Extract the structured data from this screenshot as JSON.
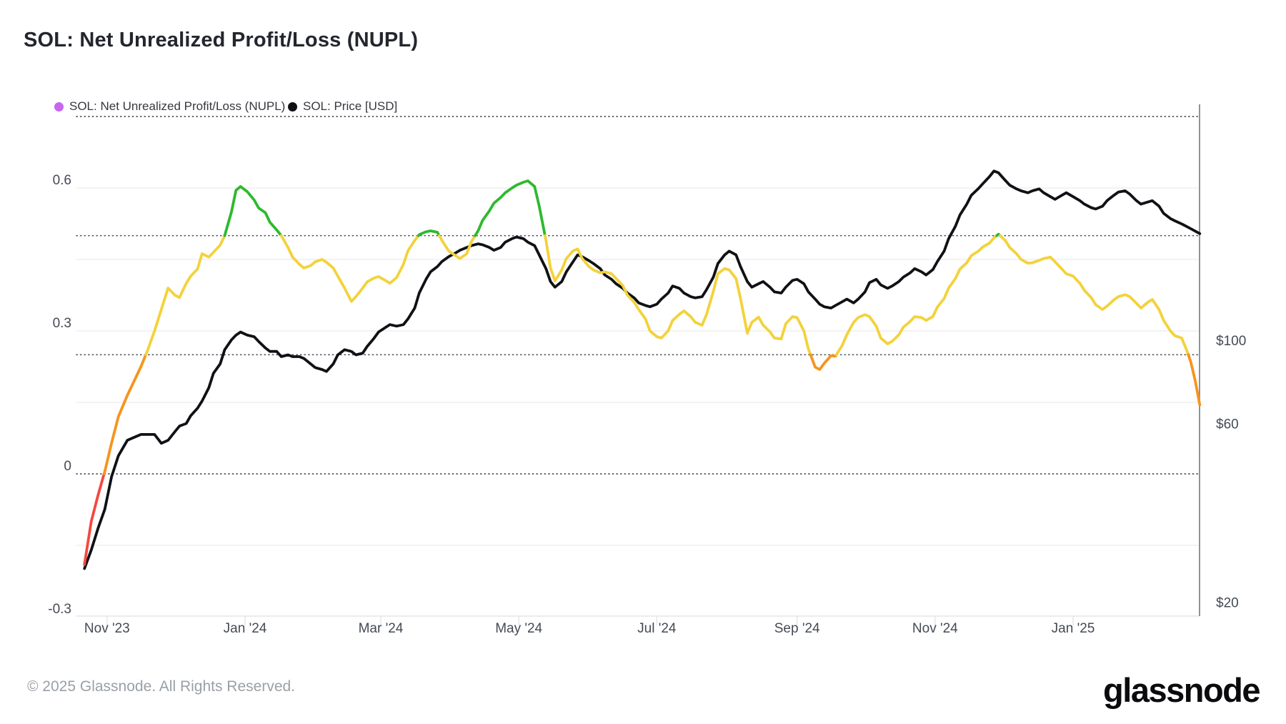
{
  "page": {
    "background": "#ffffff"
  },
  "header": {
    "title": "SOL: Net Unrealized Profit/Loss (NUPL)"
  },
  "legend": [
    {
      "label": "SOL: Net Unrealized Profit/Loss (NUPL)",
      "color": "#c766f2"
    },
    {
      "label": "SOL: Price [USD]",
      "color": "#0f1115"
    }
  ],
  "footer": {
    "copyright": "© 2025 Glassnode. All Rights Reserved.",
    "logo_text": "glassnode"
  },
  "chart_data": {
    "type": "line",
    "title": "SOL: Net Unrealized Profit/Loss (NUPL)",
    "grid": "on",
    "legend_position": "top-left",
    "x_axis": {
      "ticks": [
        {
          "date": "2023-11-01",
          "label": "Nov '23"
        },
        {
          "date": "2024-01-01",
          "label": "Jan '24"
        },
        {
          "date": "2024-03-01",
          "label": "Mar '24"
        },
        {
          "date": "2024-05-01",
          "label": "May '24"
        },
        {
          "date": "2024-07-01",
          "label": "Jul '24"
        },
        {
          "date": "2024-09-01",
          "label": "Sep '24"
        },
        {
          "date": "2024-11-01",
          "label": "Nov '24"
        },
        {
          "date": "2025-01-01",
          "label": "Jan '25"
        }
      ],
      "range": [
        "2023-10-22",
        "2025-02-26"
      ]
    },
    "left_axis": {
      "name": "NUPL",
      "scale": "linear",
      "range": [
        -0.33,
        0.77
      ],
      "ticks": [
        {
          "value": 0.6,
          "label": "0.6"
        },
        {
          "value": 0.3,
          "label": "0.3"
        },
        {
          "value": 0,
          "label": "0"
        },
        {
          "value": -0.3,
          "label": "-0.3"
        }
      ],
      "threshold_dotted_lines": [
        0.75,
        0.5,
        0.25,
        0
      ],
      "minor_gridlines": [
        0.6,
        0.45,
        0.3,
        0.15,
        -0.15
      ]
    },
    "right_axis": {
      "name": "Price USD",
      "scale": "log",
      "ticks": [
        {
          "value": 100,
          "label": "$100"
        },
        {
          "value": 60,
          "label": "$60"
        },
        {
          "value": 20,
          "label": "$20"
        }
      ]
    },
    "band_colors": [
      {
        "range": "NUPL < 0",
        "color": "#f5483f"
      },
      {
        "range": "0 to 0.25",
        "color": "#f7941d"
      },
      {
        "range": "0.25 to 0.5",
        "color": "#f3d23b"
      },
      {
        "range": "0.5 to 0.75",
        "color": "#2eb92e"
      }
    ],
    "series": [
      {
        "name": "SOL: Net Unrealized Profit/Loss (NUPL)",
        "axis": "left",
        "style": "banded-by-value"
      },
      {
        "name": "SOL: Price [USD]",
        "axis": "right",
        "color": "#0f1115"
      }
    ],
    "points_format": [
      "date",
      "nupl",
      "price_usd"
    ],
    "points": [
      [
        "2023-10-22",
        -0.19,
        25
      ],
      [
        "2023-10-25",
        -0.1,
        28
      ],
      [
        "2023-10-28",
        -0.045,
        32
      ],
      [
        "2023-10-31",
        0.005,
        36
      ],
      [
        "2023-11-03",
        0.065,
        44
      ],
      [
        "2023-11-06",
        0.12,
        50
      ],
      [
        "2023-11-10",
        0.165,
        55
      ],
      [
        "2023-11-13",
        0.195,
        56
      ],
      [
        "2023-11-16",
        0.225,
        57
      ],
      [
        "2023-11-19",
        0.26,
        57
      ],
      [
        "2023-11-22",
        0.3,
        57
      ],
      [
        "2023-11-25",
        0.345,
        54
      ],
      [
        "2023-11-28",
        0.39,
        55
      ],
      [
        "2023-12-01",
        0.375,
        58
      ],
      [
        "2023-12-03",
        0.37,
        60
      ],
      [
        "2023-12-06",
        0.4,
        61
      ],
      [
        "2023-12-08",
        0.415,
        64
      ],
      [
        "2023-12-11",
        0.43,
        67
      ],
      [
        "2023-12-13",
        0.462,
        70
      ],
      [
        "2023-12-16",
        0.455,
        76
      ],
      [
        "2023-12-18",
        0.465,
        83
      ],
      [
        "2023-12-21",
        0.48,
        88
      ],
      [
        "2023-12-23",
        0.5,
        96
      ],
      [
        "2023-12-26",
        0.55,
        102
      ],
      [
        "2023-12-28",
        0.595,
        105
      ],
      [
        "2023-12-30",
        0.603,
        107
      ],
      [
        "2024-01-02",
        0.592,
        105
      ],
      [
        "2024-01-05",
        0.575,
        104
      ],
      [
        "2024-01-07",
        0.558,
        101
      ],
      [
        "2024-01-10",
        0.548,
        97
      ],
      [
        "2024-01-12",
        0.528,
        95
      ],
      [
        "2024-01-15",
        0.512,
        95
      ],
      [
        "2024-01-17",
        0.5,
        92
      ],
      [
        "2024-01-20",
        0.475,
        93
      ],
      [
        "2024-01-22",
        0.455,
        92
      ],
      [
        "2024-01-25",
        0.44,
        92
      ],
      [
        "2024-01-27",
        0.432,
        91
      ],
      [
        "2024-01-30",
        0.437,
        88
      ],
      [
        "2024-02-01",
        0.445,
        86
      ],
      [
        "2024-02-04",
        0.45,
        85
      ],
      [
        "2024-02-06",
        0.444,
        84
      ],
      [
        "2024-02-09",
        0.432,
        88
      ],
      [
        "2024-02-11",
        0.415,
        93
      ],
      [
        "2024-02-14",
        0.39,
        96
      ],
      [
        "2024-02-17",
        0.362,
        95
      ],
      [
        "2024-02-19",
        0.372,
        93
      ],
      [
        "2024-02-22",
        0.39,
        94
      ],
      [
        "2024-02-24",
        0.403,
        98
      ],
      [
        "2024-02-27",
        0.411,
        103
      ],
      [
        "2024-02-29",
        0.414,
        107
      ],
      [
        "2024-03-03",
        0.406,
        110
      ],
      [
        "2024-03-05",
        0.4,
        112
      ],
      [
        "2024-03-08",
        0.412,
        111
      ],
      [
        "2024-03-11",
        0.44,
        112
      ],
      [
        "2024-03-13",
        0.468,
        116
      ],
      [
        "2024-03-16",
        0.49,
        124
      ],
      [
        "2024-03-18",
        0.502,
        136
      ],
      [
        "2024-03-21",
        0.508,
        148
      ],
      [
        "2024-03-23",
        0.51,
        155
      ],
      [
        "2024-03-26",
        0.507,
        160
      ],
      [
        "2024-03-28",
        0.49,
        165
      ],
      [
        "2024-03-31",
        0.468,
        170
      ],
      [
        "2024-04-03",
        0.458,
        174
      ],
      [
        "2024-04-05",
        0.452,
        177
      ],
      [
        "2024-04-08",
        0.462,
        180
      ],
      [
        "2024-04-10",
        0.487,
        182
      ],
      [
        "2024-04-13",
        0.51,
        184
      ],
      [
        "2024-04-15",
        0.532,
        183
      ],
      [
        "2024-04-18",
        0.552,
        180
      ],
      [
        "2024-04-20",
        0.568,
        177
      ],
      [
        "2024-04-23",
        0.58,
        180
      ],
      [
        "2024-04-25",
        0.59,
        186
      ],
      [
        "2024-04-28",
        0.6,
        190
      ],
      [
        "2024-04-30",
        0.606,
        192
      ],
      [
        "2024-05-03",
        0.612,
        190
      ],
      [
        "2024-05-05",
        0.615,
        186
      ],
      [
        "2024-05-08",
        0.603,
        182
      ],
      [
        "2024-05-10",
        0.562,
        172
      ],
      [
        "2024-05-13",
        0.49,
        158
      ],
      [
        "2024-05-15",
        0.432,
        146
      ],
      [
        "2024-05-17",
        0.405,
        141
      ],
      [
        "2024-05-20",
        0.428,
        146
      ],
      [
        "2024-05-22",
        0.452,
        155
      ],
      [
        "2024-05-25",
        0.468,
        165
      ],
      [
        "2024-05-27",
        0.472,
        172
      ],
      [
        "2024-05-29",
        0.452,
        170
      ],
      [
        "2024-06-01",
        0.435,
        166
      ],
      [
        "2024-06-03",
        0.428,
        163
      ],
      [
        "2024-06-06",
        0.422,
        158
      ],
      [
        "2024-06-08",
        0.424,
        152
      ],
      [
        "2024-06-11",
        0.42,
        148
      ],
      [
        "2024-06-13",
        0.41,
        144
      ],
      [
        "2024-06-16",
        0.395,
        140
      ],
      [
        "2024-06-18",
        0.375,
        136
      ],
      [
        "2024-06-21",
        0.36,
        132
      ],
      [
        "2024-06-23",
        0.345,
        128
      ],
      [
        "2024-06-26",
        0.325,
        126
      ],
      [
        "2024-06-28",
        0.3,
        125
      ],
      [
        "2024-07-01",
        0.288,
        127
      ],
      [
        "2024-07-03",
        0.285,
        131
      ],
      [
        "2024-07-06",
        0.3,
        136
      ],
      [
        "2024-07-08",
        0.322,
        142
      ],
      [
        "2024-07-11",
        0.335,
        140
      ],
      [
        "2024-07-13",
        0.342,
        136
      ],
      [
        "2024-07-16",
        0.33,
        133
      ],
      [
        "2024-07-18",
        0.318,
        132
      ],
      [
        "2024-07-21",
        0.312,
        133
      ],
      [
        "2024-07-23",
        0.335,
        139
      ],
      [
        "2024-07-26",
        0.383,
        150
      ],
      [
        "2024-07-28",
        0.42,
        163
      ],
      [
        "2024-07-31",
        0.431,
        172
      ],
      [
        "2024-08-02",
        0.428,
        176
      ],
      [
        "2024-08-05",
        0.41,
        172
      ],
      [
        "2024-08-07",
        0.368,
        160
      ],
      [
        "2024-08-10",
        0.295,
        146
      ],
      [
        "2024-08-12",
        0.318,
        141
      ],
      [
        "2024-08-15",
        0.329,
        144
      ],
      [
        "2024-08-17",
        0.312,
        146
      ],
      [
        "2024-08-20",
        0.298,
        141
      ],
      [
        "2024-08-22",
        0.285,
        137
      ],
      [
        "2024-08-25",
        0.283,
        136
      ],
      [
        "2024-08-27",
        0.315,
        141
      ],
      [
        "2024-08-30",
        0.33,
        147
      ],
      [
        "2024-09-01",
        0.328,
        148
      ],
      [
        "2024-09-04",
        0.3,
        144
      ],
      [
        "2024-09-06",
        0.262,
        137
      ],
      [
        "2024-09-09",
        0.224,
        131
      ],
      [
        "2024-09-11",
        0.219,
        127
      ],
      [
        "2024-09-13",
        0.232,
        125
      ],
      [
        "2024-09-16",
        0.248,
        124
      ],
      [
        "2024-09-18",
        0.247,
        126
      ],
      [
        "2024-09-21",
        0.27,
        129
      ],
      [
        "2024-09-23",
        0.292,
        131
      ],
      [
        "2024-09-26",
        0.318,
        128
      ],
      [
        "2024-09-28",
        0.328,
        131
      ],
      [
        "2024-10-01",
        0.334,
        137
      ],
      [
        "2024-10-03",
        0.33,
        145
      ],
      [
        "2024-10-06",
        0.31,
        148
      ],
      [
        "2024-10-08",
        0.285,
        143
      ],
      [
        "2024-10-11",
        0.273,
        140
      ],
      [
        "2024-10-13",
        0.278,
        142
      ],
      [
        "2024-10-16",
        0.292,
        146
      ],
      [
        "2024-10-18",
        0.308,
        150
      ],
      [
        "2024-10-21",
        0.32,
        154
      ],
      [
        "2024-10-23",
        0.33,
        158
      ],
      [
        "2024-10-26",
        0.328,
        155
      ],
      [
        "2024-10-28",
        0.322,
        152
      ],
      [
        "2024-10-31",
        0.33,
        157
      ],
      [
        "2024-11-02",
        0.35,
        165
      ],
      [
        "2024-11-05",
        0.368,
        176
      ],
      [
        "2024-11-07",
        0.39,
        190
      ],
      [
        "2024-11-10",
        0.41,
        205
      ],
      [
        "2024-11-12",
        0.43,
        220
      ],
      [
        "2024-11-15",
        0.443,
        235
      ],
      [
        "2024-11-17",
        0.458,
        248
      ],
      [
        "2024-11-20",
        0.467,
        258
      ],
      [
        "2024-11-22",
        0.476,
        266
      ],
      [
        "2024-11-25",
        0.484,
        278
      ],
      [
        "2024-11-27",
        0.495,
        288
      ],
      [
        "2024-11-29",
        0.503,
        285
      ],
      [
        "2024-12-02",
        0.49,
        272
      ],
      [
        "2024-12-04",
        0.475,
        264
      ],
      [
        "2024-12-07",
        0.462,
        258
      ],
      [
        "2024-12-09",
        0.45,
        255
      ],
      [
        "2024-12-12",
        0.442,
        252
      ],
      [
        "2024-12-14",
        0.443,
        255
      ],
      [
        "2024-12-17",
        0.448,
        258
      ],
      [
        "2024-12-19",
        0.452,
        252
      ],
      [
        "2024-12-22",
        0.455,
        246
      ],
      [
        "2024-12-24",
        0.445,
        242
      ],
      [
        "2024-12-27",
        0.43,
        248
      ],
      [
        "2024-12-29",
        0.42,
        252
      ],
      [
        "2025-01-01",
        0.415,
        246
      ],
      [
        "2025-01-04",
        0.4,
        240
      ],
      [
        "2025-01-06",
        0.385,
        235
      ],
      [
        "2025-01-09",
        0.37,
        230
      ],
      [
        "2025-01-11",
        0.355,
        228
      ],
      [
        "2025-01-14",
        0.345,
        232
      ],
      [
        "2025-01-16",
        0.352,
        240
      ],
      [
        "2025-01-19",
        0.365,
        248
      ],
      [
        "2025-01-21",
        0.372,
        253
      ],
      [
        "2025-01-24",
        0.376,
        255
      ],
      [
        "2025-01-26",
        0.372,
        250
      ],
      [
        "2025-01-29",
        0.358,
        240
      ],
      [
        "2025-01-31",
        0.348,
        235
      ],
      [
        "2025-02-03",
        0.36,
        238
      ],
      [
        "2025-02-05",
        0.366,
        240
      ],
      [
        "2025-02-08",
        0.345,
        232
      ],
      [
        "2025-02-10",
        0.322,
        222
      ],
      [
        "2025-02-13",
        0.3,
        215
      ],
      [
        "2025-02-15",
        0.29,
        212
      ],
      [
        "2025-02-18",
        0.285,
        208
      ],
      [
        "2025-02-20",
        0.262,
        205
      ],
      [
        "2025-02-22",
        0.235,
        202
      ],
      [
        "2025-02-24",
        0.195,
        199
      ],
      [
        "2025-02-26",
        0.145,
        196
      ]
    ]
  }
}
